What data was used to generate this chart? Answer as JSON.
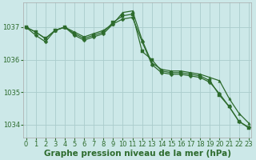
{
  "background_color": "#cce8e8",
  "grid_color": "#aacccc",
  "line_color": "#2d6b2d",
  "xlabel": "Graphe pression niveau de la mer (hPa)",
  "xlabel_fontsize": 7.5,
  "tick_fontsize": 6,
  "ytick_labels": [
    1034,
    1035,
    1036,
    1037
  ],
  "xtick_labels": [
    0,
    1,
    2,
    3,
    4,
    5,
    6,
    7,
    8,
    9,
    10,
    11,
    12,
    13,
    14,
    15,
    16,
    17,
    18,
    19,
    20,
    21,
    22,
    23
  ],
  "ylim": [
    1033.6,
    1037.75
  ],
  "xlim": [
    -0.3,
    23.3
  ],
  "series": [
    [
      1037.0,
      1036.85,
      1036.65,
      1036.9,
      1037.0,
      1036.85,
      1036.7,
      1036.8,
      1036.9,
      1037.1,
      1037.45,
      1037.5,
      1036.6,
      1035.9,
      1035.7,
      1035.65,
      1035.65,
      1035.6,
      1035.55,
      1035.45,
      1035.35,
      1034.8,
      1034.35,
      1034.05
    ],
    [
      1037.0,
      1036.85,
      1036.65,
      1036.9,
      1037.0,
      1036.8,
      1036.65,
      1036.75,
      1036.85,
      1037.15,
      1037.35,
      1037.4,
      1036.25,
      1036.0,
      1035.65,
      1035.6,
      1035.6,
      1035.55,
      1035.5,
      1035.35,
      1034.9,
      1034.55,
      1034.1,
      1033.9
    ],
    [
      1037.0,
      1036.75,
      1036.55,
      1036.9,
      1037.0,
      1036.75,
      1036.6,
      1036.7,
      1036.8,
      1037.1,
      1037.25,
      1037.3,
      1036.55,
      1035.85,
      1035.6,
      1035.55,
      1035.55,
      1035.5,
      1035.45,
      1035.3,
      1034.95,
      1034.55,
      1034.1,
      1033.92
    ]
  ]
}
